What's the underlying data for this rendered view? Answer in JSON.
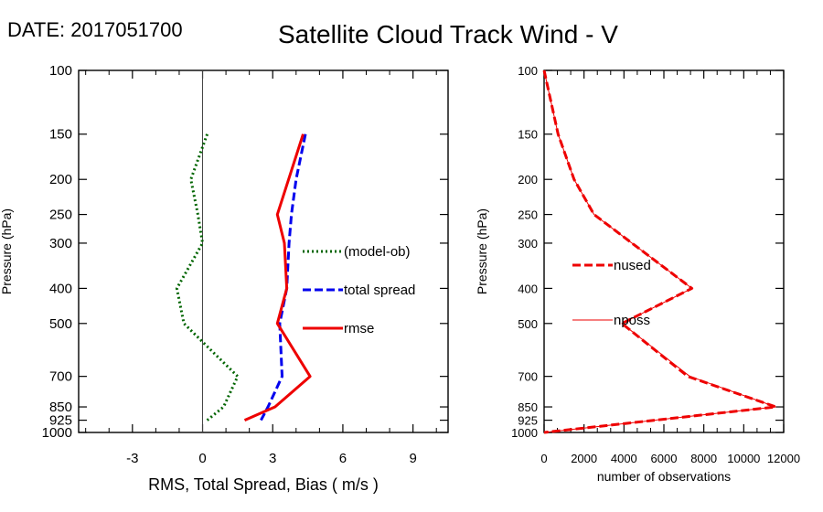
{
  "header": {
    "date": "DATE: 2017051700",
    "title": "Satellite Cloud Track Wind - V"
  },
  "chart_data": [
    {
      "type": "line",
      "id": "rms-spread-bias",
      "title": "Satellite Cloud Track Wind - V",
      "xlabel": "RMS, Total Spread, Bias ( m/s )",
      "ylabel": "Pressure (hPa)",
      "xlim": [
        -5.3,
        10.5
      ],
      "ylim": [
        1000,
        100
      ],
      "y_scale": "log",
      "y_reversed": true,
      "xticks": [
        -3,
        0,
        3,
        6,
        9
      ],
      "yticks": [
        100,
        150,
        200,
        250,
        300,
        400,
        500,
        700,
        850,
        925,
        1000
      ],
      "zero_line": true,
      "legend_position": "right-middle",
      "series": [
        {
          "name": "(model-ob)",
          "color": "#006400",
          "style": "dotted",
          "points": [
            [
              0.2,
              150
            ],
            [
              -0.5,
              200
            ],
            [
              -0.2,
              250
            ],
            [
              0.0,
              300
            ],
            [
              -1.1,
              400
            ],
            [
              -0.8,
              500
            ],
            [
              1.5,
              700
            ],
            [
              0.9,
              850
            ],
            [
              0.2,
              925
            ]
          ]
        },
        {
          "name": "total spread",
          "color": "#0000ee",
          "style": "dashed",
          "points": [
            [
              4.4,
              150
            ],
            [
              4.0,
              200
            ],
            [
              3.8,
              250
            ],
            [
              3.7,
              300
            ],
            [
              3.6,
              400
            ],
            [
              3.3,
              500
            ],
            [
              3.4,
              700
            ],
            [
              2.8,
              850
            ],
            [
              2.5,
              925
            ]
          ]
        },
        {
          "name": "rmse",
          "color": "#ee0000",
          "style": "solid",
          "points": [
            [
              4.3,
              150
            ],
            [
              3.2,
              250
            ],
            [
              3.5,
              300
            ],
            [
              3.6,
              400
            ],
            [
              3.2,
              500
            ],
            [
              4.6,
              700
            ],
            [
              3.1,
              850
            ],
            [
              1.8,
              925
            ]
          ]
        }
      ]
    },
    {
      "type": "line",
      "id": "observations",
      "xlabel": "number of observations",
      "ylabel": "Pressure (hPa)",
      "xlim": [
        0,
        12000
      ],
      "ylim": [
        1000,
        100
      ],
      "y_scale": "log",
      "y_reversed": true,
      "xticks": [
        0,
        2000,
        4000,
        6000,
        8000,
        10000,
        12000
      ],
      "yticks": [
        100,
        150,
        200,
        250,
        300,
        400,
        500,
        700,
        850,
        925,
        1000
      ],
      "legend_position": "left-middle",
      "series": [
        {
          "name": "nused",
          "color": "#ee0000",
          "style": "dashed",
          "points": [
            [
              0,
              100
            ],
            [
              700,
              150
            ],
            [
              1500,
              200
            ],
            [
              2500,
              250
            ],
            [
              7400,
              400
            ],
            [
              3900,
              500
            ],
            [
              7200,
              700
            ],
            [
              11600,
              850
            ],
            [
              0,
              1000
            ]
          ]
        },
        {
          "name": "nposs",
          "color": "#ee0000",
          "style": "thin",
          "points": [
            [
              0,
              100
            ],
            [
              700,
              150
            ],
            [
              1500,
              200
            ],
            [
              2500,
              250
            ],
            [
              7400,
              400
            ],
            [
              3900,
              500
            ],
            [
              7300,
              700
            ],
            [
              11600,
              850
            ],
            [
              0,
              1000
            ]
          ]
        }
      ]
    }
  ]
}
